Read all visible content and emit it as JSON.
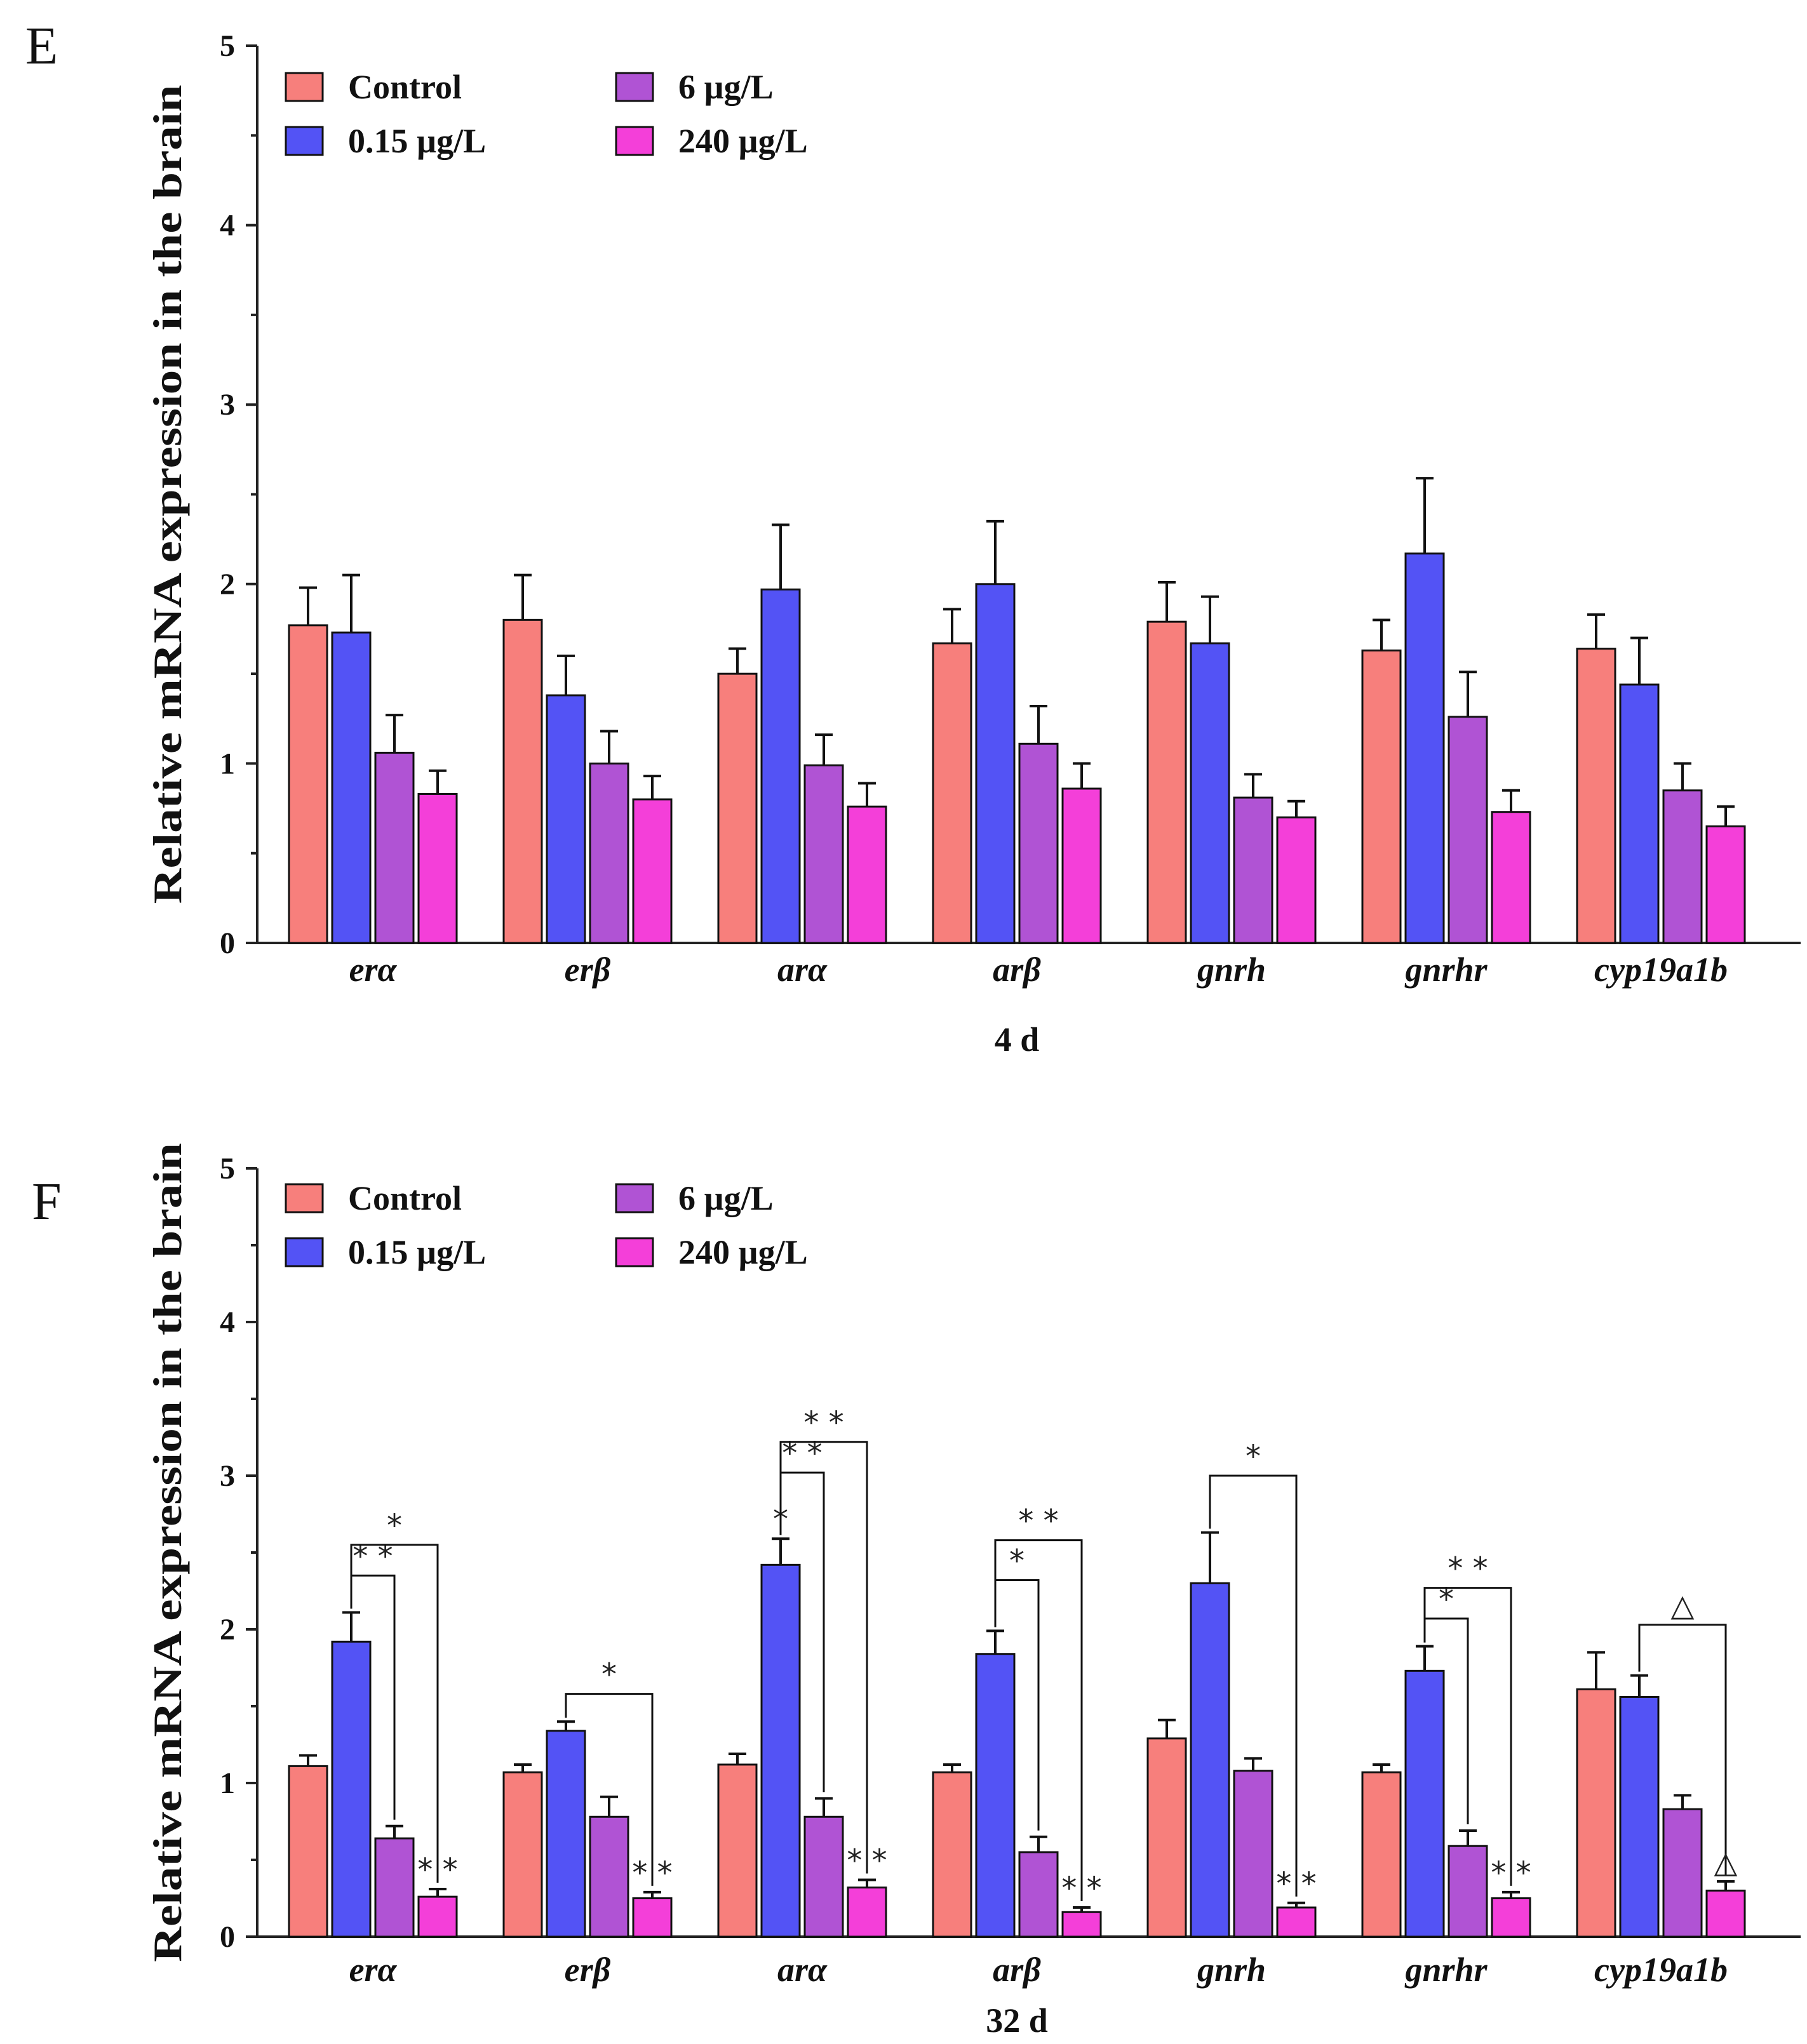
{
  "colors": {
    "Control": "#f77f7c",
    "0.15 µg/L": "#5353f5",
    "6 µg/L": "#b053d4",
    "240 µg/L": "#f43fd9"
  },
  "chart_data": [
    {
      "type": "bar",
      "panel": "E",
      "title": "",
      "xlabel": "4 d",
      "ylabel": "Relative mRNA expression in the brain",
      "ylim": [
        0,
        5
      ],
      "yticks": [
        "0",
        "1",
        "2",
        "3",
        "4",
        "5"
      ],
      "legend": [
        "Control",
        "0.15 µg/L",
        "6 µg/L",
        "240 µg/L"
      ],
      "legend_position": "top-left",
      "categories": [
        "erα",
        "erβ",
        "arα",
        "arβ",
        "gnrh",
        "gnrhr",
        "cyp19a1b"
      ],
      "series": [
        {
          "name": "Control",
          "values": [
            1.77,
            1.8,
            1.5,
            1.67,
            1.79,
            1.63,
            1.64
          ],
          "errors": [
            0.21,
            0.25,
            0.14,
            0.19,
            0.22,
            0.17,
            0.19
          ]
        },
        {
          "name": "0.15 µg/L",
          "values": [
            1.73,
            1.38,
            1.97,
            2.0,
            1.67,
            2.17,
            1.44
          ],
          "errors": [
            0.32,
            0.22,
            0.36,
            0.35,
            0.26,
            0.42,
            0.26
          ]
        },
        {
          "name": "6 µg/L",
          "values": [
            1.06,
            1.0,
            0.99,
            1.11,
            0.81,
            1.26,
            0.85
          ],
          "errors": [
            0.21,
            0.18,
            0.17,
            0.21,
            0.13,
            0.25,
            0.15
          ]
        },
        {
          "name": "240 µg/L",
          "values": [
            0.83,
            0.8,
            0.76,
            0.86,
            0.7,
            0.73,
            0.65
          ],
          "errors": [
            0.13,
            0.13,
            0.13,
            0.14,
            0.09,
            0.12,
            0.11
          ]
        }
      ],
      "annotations": []
    },
    {
      "type": "bar",
      "panel": "F",
      "title": "",
      "xlabel": "32 d",
      "ylabel": "Relative mRNA expression in the brain",
      "ylim": [
        0,
        5
      ],
      "yticks": [
        "0",
        "1",
        "2",
        "3",
        "4",
        "5"
      ],
      "legend": [
        "Control",
        "0.15 µg/L",
        "6 µg/L",
        "240 µg/L"
      ],
      "legend_position": "top-left",
      "categories": [
        "erα",
        "erβ",
        "arα",
        "arβ",
        "gnrh",
        "gnrhr",
        "cyp19a1b"
      ],
      "series": [
        {
          "name": "Control",
          "values": [
            1.11,
            1.07,
            1.12,
            1.07,
            1.29,
            1.07,
            1.61
          ],
          "errors": [
            0.07,
            0.05,
            0.07,
            0.05,
            0.12,
            0.05,
            0.24
          ]
        },
        {
          "name": "0.15 µg/L",
          "values": [
            1.92,
            1.34,
            2.42,
            1.84,
            2.3,
            1.73,
            1.56
          ],
          "errors": [
            0.19,
            0.06,
            0.17,
            0.15,
            0.33,
            0.16,
            0.14
          ]
        },
        {
          "name": "6 µg/L",
          "values": [
            0.64,
            0.78,
            0.78,
            0.55,
            1.08,
            0.59,
            0.83
          ],
          "errors": [
            0.08,
            0.13,
            0.12,
            0.1,
            0.08,
            0.1,
            0.09
          ]
        },
        {
          "name": "240 µg/L",
          "values": [
            0.26,
            0.25,
            0.32,
            0.16,
            0.19,
            0.25,
            0.3
          ],
          "errors": [
            0.05,
            0.04,
            0.05,
            0.03,
            0.03,
            0.04,
            0.06
          ]
        }
      ],
      "annotations": [
        {
          "category": "erα",
          "series": "6 µg/L",
          "label": "",
          "bracket_from": "0.15 µg/L",
          "bracket_label": "* *",
          "bracket_top": 2.35
        },
        {
          "category": "erα",
          "series": "240 µg/L",
          "label": "* *",
          "bracket_from": "0.15 µg/L",
          "bracket_label": "*",
          "bracket_top": 2.55
        },
        {
          "category": "erβ",
          "series": "240 µg/L",
          "label": "* *",
          "bracket_from": "0.15 µg/L",
          "bracket_label": "*",
          "bracket_top": 1.58
        },
        {
          "category": "arα",
          "series": "0.15 µg/L",
          "label": "*"
        },
        {
          "category": "arα",
          "series": "6 µg/L",
          "label": "",
          "bracket_from": "0.15 µg/L",
          "bracket_label": "* *",
          "bracket_top": 3.02
        },
        {
          "category": "arα",
          "series": "240 µg/L",
          "label": "* *",
          "bracket_from": "0.15 µg/L",
          "bracket_label": "* *",
          "bracket_top": 3.22
        },
        {
          "category": "arβ",
          "series": "6 µg/L",
          "label": "",
          "bracket_from": "0.15 µg/L",
          "bracket_label": "*",
          "bracket_top": 2.32
        },
        {
          "category": "arβ",
          "series": "240 µg/L",
          "label": "* *",
          "bracket_from": "0.15 µg/L",
          "bracket_label": "* *",
          "bracket_top": 2.58
        },
        {
          "category": "gnrh",
          "series": "240 µg/L",
          "label": "* *",
          "bracket_from": "0.15 µg/L",
          "bracket_label": "*",
          "bracket_top": 3.0
        },
        {
          "category": "gnrhr",
          "series": "6 µg/L",
          "label": "",
          "bracket_from": "0.15 µg/L",
          "bracket_label": "*",
          "bracket_top": 2.07
        },
        {
          "category": "gnrhr",
          "series": "240 µg/L",
          "label": "* *",
          "bracket_from": "0.15 µg/L",
          "bracket_label": "* *",
          "bracket_top": 2.27
        },
        {
          "category": "cyp19a1b",
          "series": "240 µg/L",
          "label": "△",
          "bracket_from": "0.15 µg/L",
          "bracket_label": "△",
          "bracket_top": 2.03
        }
      ]
    }
  ]
}
